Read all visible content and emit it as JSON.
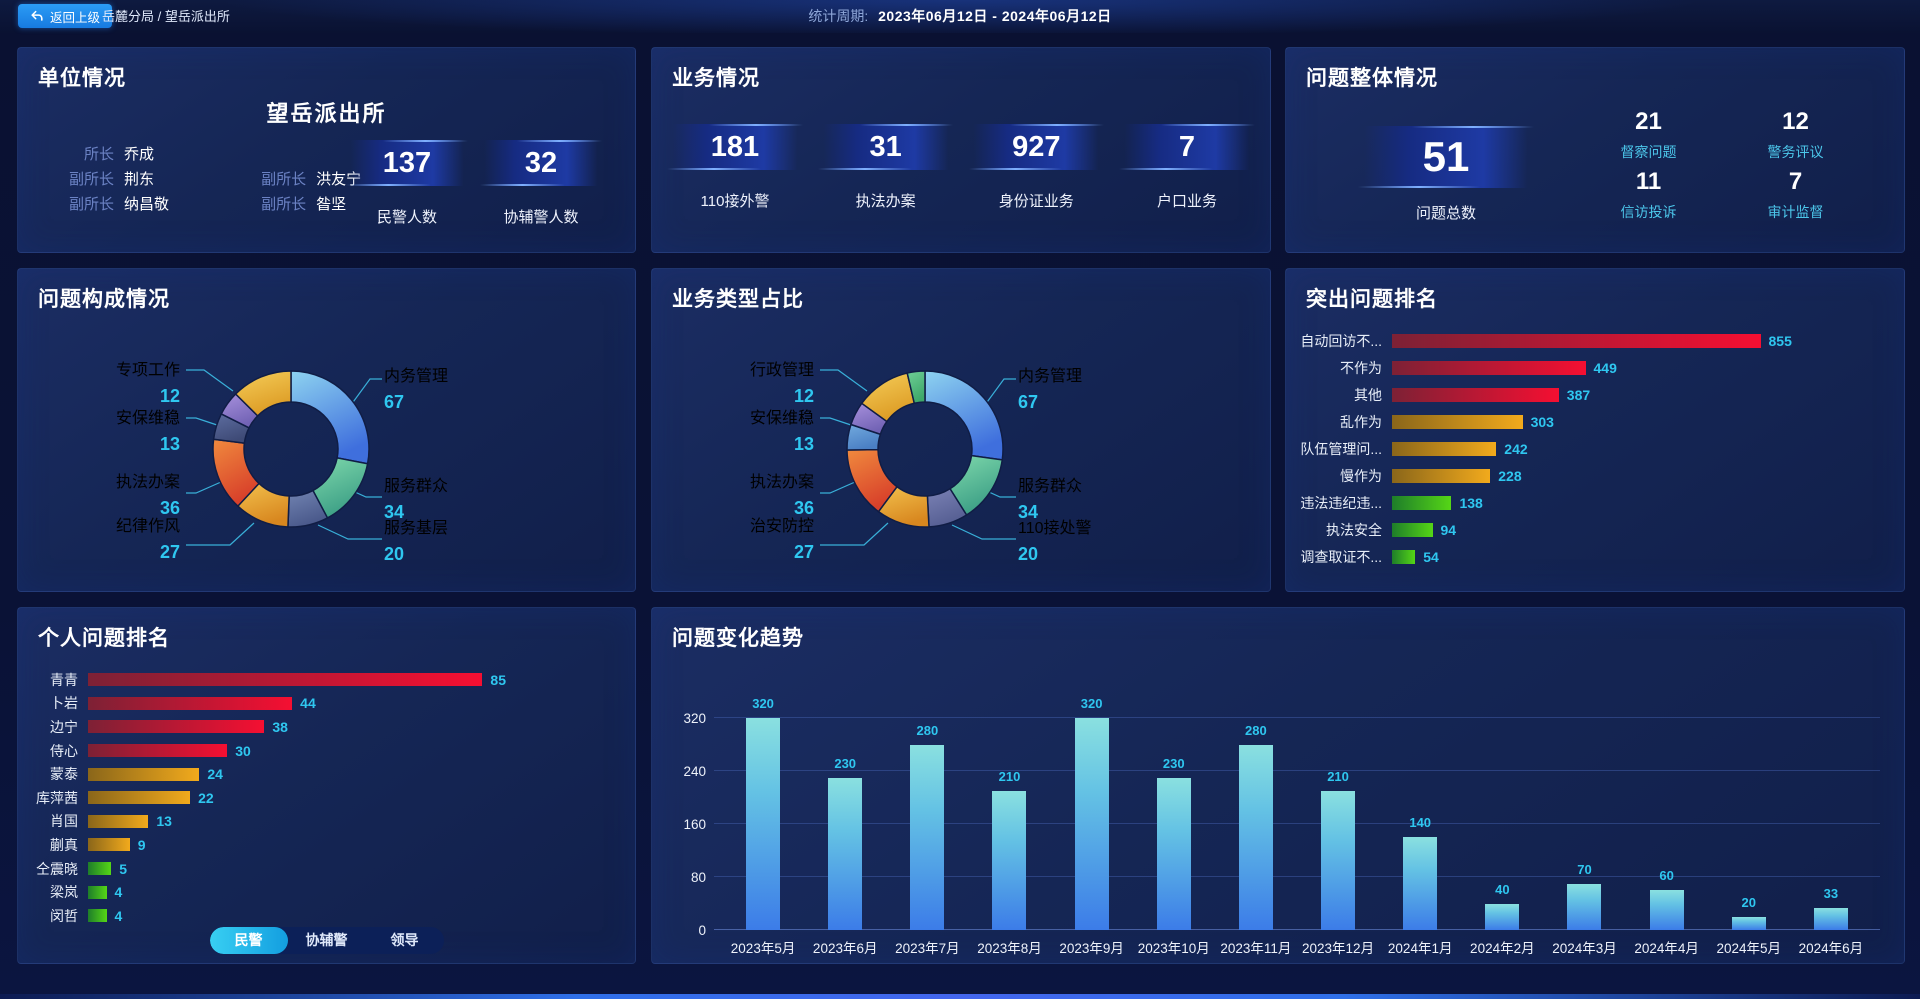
{
  "topbar": {
    "back_button": "返回上级",
    "breadcrumb": "岳麓分局 / 望岳派出所",
    "period_label": "统计周期:",
    "period_value": "2023年06月12日 - 2024年06月12日"
  },
  "unit_panel": {
    "title": "单位情况",
    "station_name": "望岳派出所",
    "leaders": [
      {
        "role": "所长",
        "name": "乔成"
      },
      {
        "role": "副所长",
        "name": "荆东"
      },
      {
        "role": "副所长",
        "name": "洪友宁"
      },
      {
        "role": "副所长",
        "name": "纳昌敬"
      },
      {
        "role": "副所长",
        "name": "昝坚"
      }
    ],
    "stats": [
      {
        "value": 137,
        "label": "民警人数"
      },
      {
        "value": 32,
        "label": "协辅警人数"
      }
    ]
  },
  "business_panel": {
    "title": "业务情况",
    "stats": [
      {
        "value": 181,
        "label": "110接外警"
      },
      {
        "value": 31,
        "label": "执法办案"
      },
      {
        "value": 927,
        "label": "身份证业务"
      },
      {
        "value": 7,
        "label": "户口业务"
      }
    ]
  },
  "overview_panel": {
    "title": "问题整体情况",
    "total": {
      "value": 51,
      "label": "问题总数"
    },
    "stats": [
      {
        "value": 21,
        "label": "督察问题"
      },
      {
        "value": 12,
        "label": "警务评议"
      },
      {
        "value": 11,
        "label": "信访投诉"
      },
      {
        "value": 7,
        "label": "审计监督"
      }
    ]
  },
  "personal_panel": {
    "tabs": [
      {
        "label": "民警",
        "active": true
      },
      {
        "label": "协辅警",
        "active": false
      },
      {
        "label": "领导",
        "active": false
      }
    ]
  },
  "colors": {
    "accent_cyan": "#2fc7f0",
    "bar_tiers": {
      "red": [
        "#7d2135",
        "#f50f32"
      ],
      "amber": [
        "#8a661a",
        "#f2aa1c"
      ],
      "green": [
        "#1e7d2a",
        "#55d616"
      ]
    },
    "trend_bar": [
      "#8ae0e0",
      "#3c7ce8"
    ]
  },
  "chart_data": [
    {
      "id": "problem-composition",
      "type": "pie",
      "donut": true,
      "title": "问题构成情况",
      "slices": [
        {
          "label": "内务管理",
          "value": 67,
          "colors": [
            "#8ed3f0",
            "#3f6fdd"
          ]
        },
        {
          "label": "服务群众",
          "value": 34,
          "colors": [
            "#7fd9ac",
            "#3b9e85"
          ]
        },
        {
          "label": "服务基层",
          "value": 20,
          "colors": [
            "#7284b2",
            "#49588a"
          ]
        },
        {
          "label": "纪律作风",
          "value": 27,
          "colors": [
            "#f2c14d",
            "#d8871f"
          ]
        },
        {
          "label": "执法办案",
          "value": 36,
          "colors": [
            "#f08a3e",
            "#d8402a"
          ]
        },
        {
          "label": "安保维稳",
          "value": 13,
          "colors": [
            "#5d6da0",
            "#3e4a76"
          ]
        },
        {
          "label": "专项工作",
          "value": 12,
          "colors": [
            "#a891dd",
            "#7263b5"
          ]
        },
        {
          "label": "",
          "value": 30,
          "colors": [
            "#f5ce5a",
            "#dd9c25"
          ]
        }
      ]
    },
    {
      "id": "business-type",
      "type": "pie",
      "donut": true,
      "title": "业务类型占比",
      "slices": [
        {
          "label": "内务管理",
          "value": 67,
          "colors": [
            "#8ed3f0",
            "#3f6fdd"
          ]
        },
        {
          "label": "服务群众",
          "value": 34,
          "colors": [
            "#7fd9ac",
            "#3b9e85"
          ]
        },
        {
          "label": "110接处警",
          "value": 20,
          "colors": [
            "#7b82b5",
            "#555e92"
          ]
        },
        {
          "label": "治安防控",
          "value": 27,
          "colors": [
            "#f2c14d",
            "#d8871f"
          ]
        },
        {
          "label": "执法办案",
          "value": 36,
          "colors": [
            "#f08a3e",
            "#d8402a"
          ]
        },
        {
          "label": "安保维稳",
          "value": 13,
          "colors": [
            "#72aade",
            "#4a7fc4"
          ]
        },
        {
          "label": "行政管理",
          "value": 12,
          "colors": [
            "#a891dd",
            "#7263b5"
          ]
        },
        {
          "label": "",
          "value": 28,
          "colors": [
            "#f5ce5a",
            "#dd9c25"
          ]
        },
        {
          "label": "",
          "value": 9,
          "colors": [
            "#6fcf97",
            "#3fa86a"
          ]
        }
      ]
    },
    {
      "id": "top-problems",
      "type": "bar",
      "orientation": "horizontal",
      "title": "突出问题排名",
      "categories": [
        "自动回访不...",
        "不作为",
        "其他",
        "乱作为",
        "队伍管理问...",
        "慢作为",
        "违法违纪违...",
        "执法安全",
        "调查取证不..."
      ],
      "values": [
        855,
        449,
        387,
        303,
        242,
        228,
        138,
        94,
        54
      ],
      "tiers": [
        "red",
        "red",
        "red",
        "amber",
        "amber",
        "amber",
        "green",
        "green",
        "green"
      ]
    },
    {
      "id": "personal-ranking",
      "type": "bar",
      "orientation": "horizontal",
      "title": "个人问题排名",
      "categories": [
        "青青",
        "卜岩",
        "边宁",
        "侍心",
        "蒙泰",
        "库萍茜",
        "肖国",
        "蒯真",
        "仝震晓",
        "梁岚",
        "闵哲"
      ],
      "values": [
        85,
        44,
        38,
        30,
        24,
        22,
        13,
        9,
        5,
        4,
        4
      ],
      "tiers": [
        "red",
        "red",
        "red",
        "red",
        "amber",
        "amber",
        "amber",
        "amber",
        "green",
        "green",
        "green"
      ]
    },
    {
      "id": "problem-trend",
      "type": "bar",
      "orientation": "vertical",
      "title": "问题变化趋势",
      "categories": [
        "2023年5月",
        "2023年6月",
        "2023年7月",
        "2023年8月",
        "2023年9月",
        "2023年10月",
        "2023年11月",
        "2023年12月",
        "2024年1月",
        "2024年2月",
        "2024年3月",
        "2024年4月",
        "2024年5月",
        "2024年6月"
      ],
      "values": [
        320,
        230,
        280,
        210,
        320,
        230,
        280,
        210,
        140,
        40,
        70,
        60,
        20,
        33
      ],
      "yticks": [
        0,
        80,
        160,
        240,
        320
      ],
      "ylim": [
        0,
        320
      ],
      "grid": true
    }
  ]
}
